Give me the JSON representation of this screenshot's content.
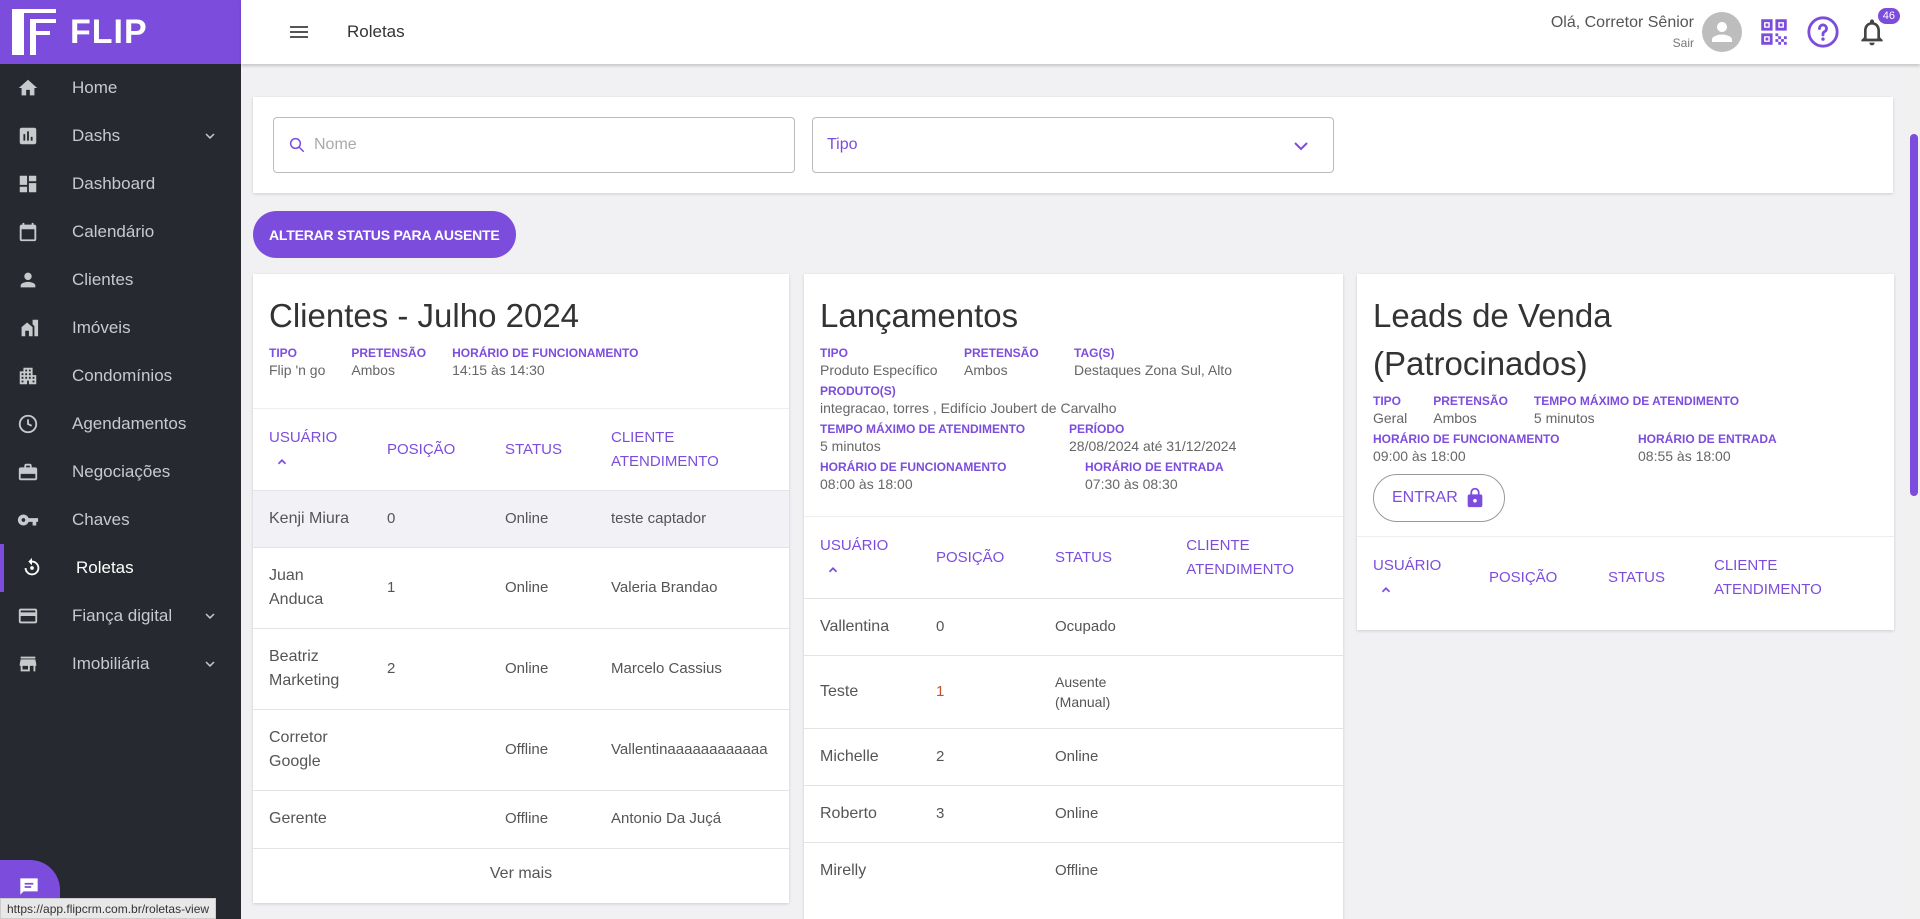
{
  "brand": {
    "name": "FLIP"
  },
  "sidebar": {
    "items": [
      {
        "label": "Home",
        "icon": "home-icon",
        "chevron": false
      },
      {
        "label": "Dashs",
        "icon": "chart-icon",
        "chevron": true
      },
      {
        "label": "Dashboard",
        "icon": "dashboard-icon",
        "chevron": false
      },
      {
        "label": "Calendário",
        "icon": "calendar-icon",
        "chevron": false
      },
      {
        "label": "Clientes",
        "icon": "person-icon",
        "chevron": false
      },
      {
        "label": "Imóveis",
        "icon": "building-icon",
        "chevron": false
      },
      {
        "label": "Condomínios",
        "icon": "apartment-icon",
        "chevron": false
      },
      {
        "label": "Agendamentos",
        "icon": "clock-icon",
        "chevron": false
      },
      {
        "label": "Negociações",
        "icon": "briefcase-icon",
        "chevron": false
      },
      {
        "label": "Chaves",
        "icon": "key-icon",
        "chevron": false
      },
      {
        "label": "Roletas",
        "icon": "roulette-icon",
        "chevron": false,
        "active": true
      },
      {
        "label": "Fiança digital",
        "icon": "card-icon",
        "chevron": true
      },
      {
        "label": "Imobiliária",
        "icon": "store-icon",
        "chevron": true
      }
    ]
  },
  "topbar": {
    "title": "Roletas",
    "greeting": "Olá, Corretor Sênior",
    "logout": "Sair",
    "notifications": "46"
  },
  "filters": {
    "search_placeholder": "Nome",
    "type_label": "Tipo"
  },
  "actions": {
    "set_absent": "ALTERAR STATUS PARA AUSENTE"
  },
  "cards": [
    {
      "title": "Clientes - Julho 2024",
      "meta": [
        {
          "label": "TIPO",
          "value": "Flip 'n go"
        },
        {
          "label": "PRETENSÃO",
          "value": "Ambos"
        },
        {
          "label": "HORÁRIO DE FUNCIONAMENTO",
          "value": "14:15 às 14:30"
        }
      ],
      "headers": [
        "USUÁRIO",
        "POSIÇÃO",
        "STATUS",
        "CLIENTE ATENDIMENTO"
      ],
      "rows": [
        {
          "user": "Kenji Miura",
          "pos": "0",
          "status": "Online",
          "client": "teste captador"
        },
        {
          "user": "Juan Anduca",
          "pos": "1",
          "status": "Online",
          "client": "Valeria Brandao"
        },
        {
          "user": "Beatriz Marketing",
          "pos": "2",
          "status": "Online",
          "client": "Marcelo Cassius"
        },
        {
          "user": "Corretor Google",
          "pos": "",
          "status": "Offline",
          "client": "Vallentinaaaaaaaaaaaa"
        },
        {
          "user": "Gerente",
          "pos": "",
          "status": "Offline",
          "client": "Antonio Da Juçá"
        }
      ],
      "more": "Ver mais"
    },
    {
      "title": "Lançamentos",
      "meta": [
        {
          "label": "TIPO",
          "value": "Produto Específico"
        },
        {
          "label": "PRETENSÃO",
          "value": "Ambos"
        },
        {
          "label": "TAG(S)",
          "value": "Destaques Zona Sul, Alto"
        },
        {
          "label": "PRODUTO(S)",
          "value": "integracao, torres , Edifício Joubert de Carvalho"
        },
        {
          "label": "TEMPO MÁXIMO DE ATENDIMENTO",
          "value": "5 minutos"
        },
        {
          "label": "PERÍODO",
          "value": "28/08/2024 até 31/12/2024"
        },
        {
          "label": "HORÁRIO DE FUNCIONAMENTO",
          "value": "08:00 às 18:00"
        },
        {
          "label": "HORÁRIO DE ENTRADA",
          "value": "07:30 às 08:30"
        }
      ],
      "headers": [
        "USUÁRIO",
        "POSIÇÃO",
        "STATUS",
        "CLIENTE ATENDIMENTO"
      ],
      "rows": [
        {
          "user": "Vallentina",
          "pos": "0",
          "status": "Ocupado",
          "client": ""
        },
        {
          "user": "Teste",
          "pos": "1",
          "status": "Ausente (Manual)",
          "client": ""
        },
        {
          "user": "Michelle",
          "pos": "2",
          "status": "Online",
          "client": ""
        },
        {
          "user": "Roberto",
          "pos": "3",
          "status": "Online",
          "client": ""
        },
        {
          "user": "Mirelly",
          "pos": "",
          "status": "Offline",
          "client": ""
        }
      ]
    },
    {
      "title": "Leads de Venda (Patrocinados)",
      "meta": [
        {
          "label": "TIPO",
          "value": "Geral"
        },
        {
          "label": "PRETENSÃO",
          "value": "Ambos"
        },
        {
          "label": "TEMPO MÁXIMO DE ATENDIMENTO",
          "value": "5 minutos"
        },
        {
          "label": "HORÁRIO DE FUNCIONAMENTO",
          "value": "09:00 às 18:00"
        },
        {
          "label": "HORÁRIO DE ENTRADA",
          "value": "08:55 às 18:00"
        }
      ],
      "enter": "ENTRAR",
      "headers": [
        "USUÁRIO",
        "POSIÇÃO",
        "STATUS",
        "CLIENTE ATENDIMENTO"
      ]
    }
  ],
  "status_url": "https://app.flipcrm.com.br/roletas-view"
}
